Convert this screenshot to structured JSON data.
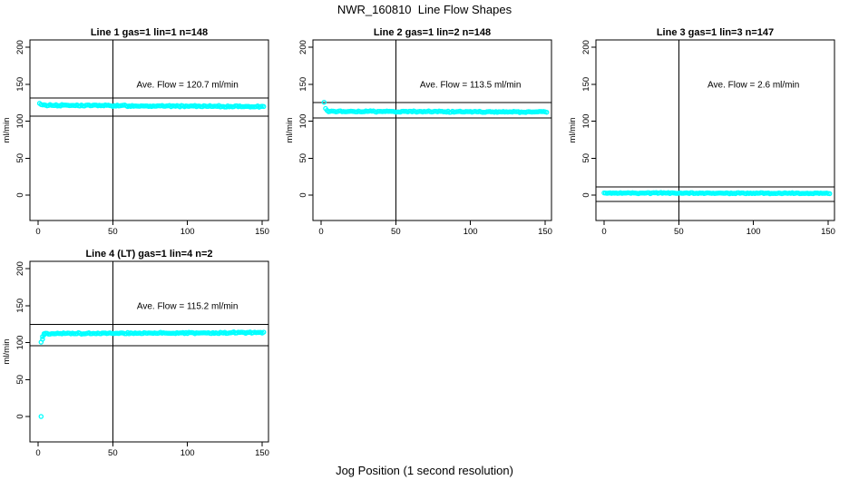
{
  "figure": {
    "title": "NWR_160810  Line Flow Shapes",
    "xlabel": "Jog Position (1 second resolution)",
    "point_color": "#00ffff",
    "axis_color": "#000000",
    "background_color": "#ffffff"
  },
  "chart_data": [
    {
      "type": "scatter",
      "title": "Line 1 gas=1 lin=1 n=148",
      "n": 148,
      "ave_flow": 120.7,
      "annotation": "Ave. Flow =  120.7  ml/min",
      "ylabel": "ml/min",
      "xticks": [
        0,
        50,
        100,
        150
      ],
      "yticks": [
        0,
        50,
        100,
        150,
        200
      ],
      "xlim": [
        -5,
        154
      ],
      "ylim": [
        -34,
        210
      ],
      "grid": false,
      "legend": "none",
      "vline_x": 50,
      "ref_lines": [
        131.3,
        107
      ],
      "points": [
        [
          1,
          124
        ],
        [
          2,
          122.5
        ]
      ],
      "steady": {
        "x_from": 3,
        "x_to": 151,
        "y_from": 121.6,
        "y_to": 119.6,
        "jitter": 1.2
      }
    },
    {
      "type": "scatter",
      "title": "Line 2 gas=1 lin=2 n=148",
      "n": 148,
      "ave_flow": 113.5,
      "annotation": "Ave. Flow =  113.5  ml/min",
      "ylabel": "ml/min",
      "xticks": [
        0,
        50,
        100,
        150
      ],
      "yticks": [
        0,
        50,
        100,
        150,
        200
      ],
      "xlim": [
        -5,
        154
      ],
      "ylim": [
        -34,
        210
      ],
      "grid": false,
      "legend": "none",
      "vline_x": 50,
      "ref_lines": [
        125,
        104.3
      ],
      "points": [
        [
          2,
          125.5
        ],
        [
          3,
          117
        ],
        [
          4,
          114.5
        ]
      ],
      "steady": {
        "x_from": 5,
        "x_to": 151,
        "y_from": 113.2,
        "y_to": 112.4,
        "jitter": 1.0
      }
    },
    {
      "type": "scatter",
      "title": "Line 3 gas=1 lin=3 n=147",
      "n": 147,
      "ave_flow": 2.6,
      "annotation": "Ave. Flow =  2.6  ml/min",
      "ylabel": "ml/min",
      "xticks": [
        0,
        50,
        100,
        150
      ],
      "yticks": [
        0,
        50,
        100,
        150,
        200
      ],
      "xlim": [
        -5,
        154
      ],
      "ylim": [
        -34,
        210
      ],
      "grid": false,
      "legend": "none",
      "vline_x": 50,
      "ref_lines": [
        11,
        -8.5
      ],
      "points": [
        [
          0,
          3
        ]
      ],
      "steady": {
        "x_from": 1,
        "x_to": 151,
        "y_from": 2.8,
        "y_to": 2.4,
        "jitter": 0.9
      }
    },
    {
      "type": "scatter",
      "title": "Line 4 (LT) gas=1 lin=4 n=2",
      "n": 2,
      "ave_flow": 115.2,
      "annotation": "Ave. Flow =  115.2  ml/min",
      "ylabel": "ml/min",
      "xticks": [
        0,
        50,
        100,
        150
      ],
      "yticks": [
        0,
        50,
        100,
        150,
        200
      ],
      "xlim": [
        -5,
        154
      ],
      "ylim": [
        -34,
        210
      ],
      "grid": false,
      "legend": "none",
      "vline_x": 50,
      "ref_lines": [
        124.5,
        95.5
      ],
      "points": [
        [
          2,
          0
        ],
        [
          2,
          100.5
        ],
        [
          3,
          104.5
        ],
        [
          3,
          108
        ],
        [
          4,
          110.5
        ],
        [
          4,
          112
        ]
      ],
      "steady": {
        "x_from": 5,
        "x_to": 151,
        "y_from": 112.2,
        "y_to": 113.4,
        "jitter": 1.2
      }
    }
  ]
}
